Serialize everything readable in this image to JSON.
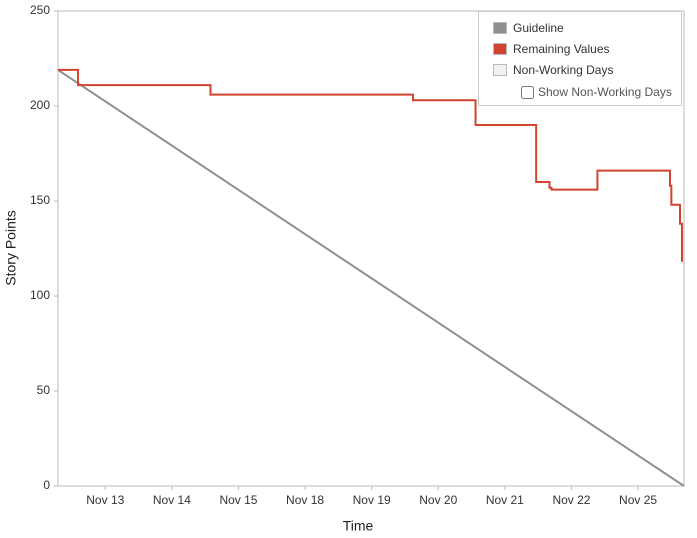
{
  "chart_data": {
    "type": "line",
    "x_label": "Time",
    "y_label": "Story Points",
    "xlim": [
      -0.71,
      8.69
    ],
    "ylim": [
      0,
      250
    ],
    "xticks": [
      {
        "value": 0,
        "label": "Nov 13"
      },
      {
        "value": 1,
        "label": "Nov 14"
      },
      {
        "value": 2,
        "label": "Nov 15"
      },
      {
        "value": 3,
        "label": "Nov 18"
      },
      {
        "value": 4,
        "label": "Nov 19"
      },
      {
        "value": 5,
        "label": "Nov 20"
      },
      {
        "value": 6,
        "label": "Nov 21"
      },
      {
        "value": 7,
        "label": "Nov 22"
      },
      {
        "value": 8,
        "label": "Nov 25"
      }
    ],
    "yticks": [
      0,
      50,
      100,
      150,
      200,
      250
    ],
    "series": [
      {
        "name": "Guideline",
        "color": "#8f8f8f",
        "x": [
          -0.71,
          8.69
        ],
        "values": [
          219,
          0
        ]
      },
      {
        "name": "Remaining Values",
        "color": "#d1442f",
        "x": [
          -0.71,
          -0.41,
          -0.41,
          1.58,
          1.58,
          4.62,
          4.62,
          5.56,
          5.56,
          6.47,
          6.47,
          6.67,
          6.67,
          6.7,
          6.7,
          7.39,
          7.39,
          8.48,
          8.48,
          8.5,
          8.5,
          8.63,
          8.63,
          8.66,
          8.66
        ],
        "values": [
          219,
          219,
          211,
          211,
          206,
          206,
          203,
          203,
          190,
          190,
          160,
          160,
          157,
          157,
          156,
          156,
          166,
          166,
          158,
          158,
          148,
          148,
          138,
          138,
          118
        ]
      }
    ],
    "non_working_days": {
      "name": "Non-Working Days",
      "color": "#f2f2f2"
    },
    "show_non_working_label": "Show Non-Working Days"
  }
}
